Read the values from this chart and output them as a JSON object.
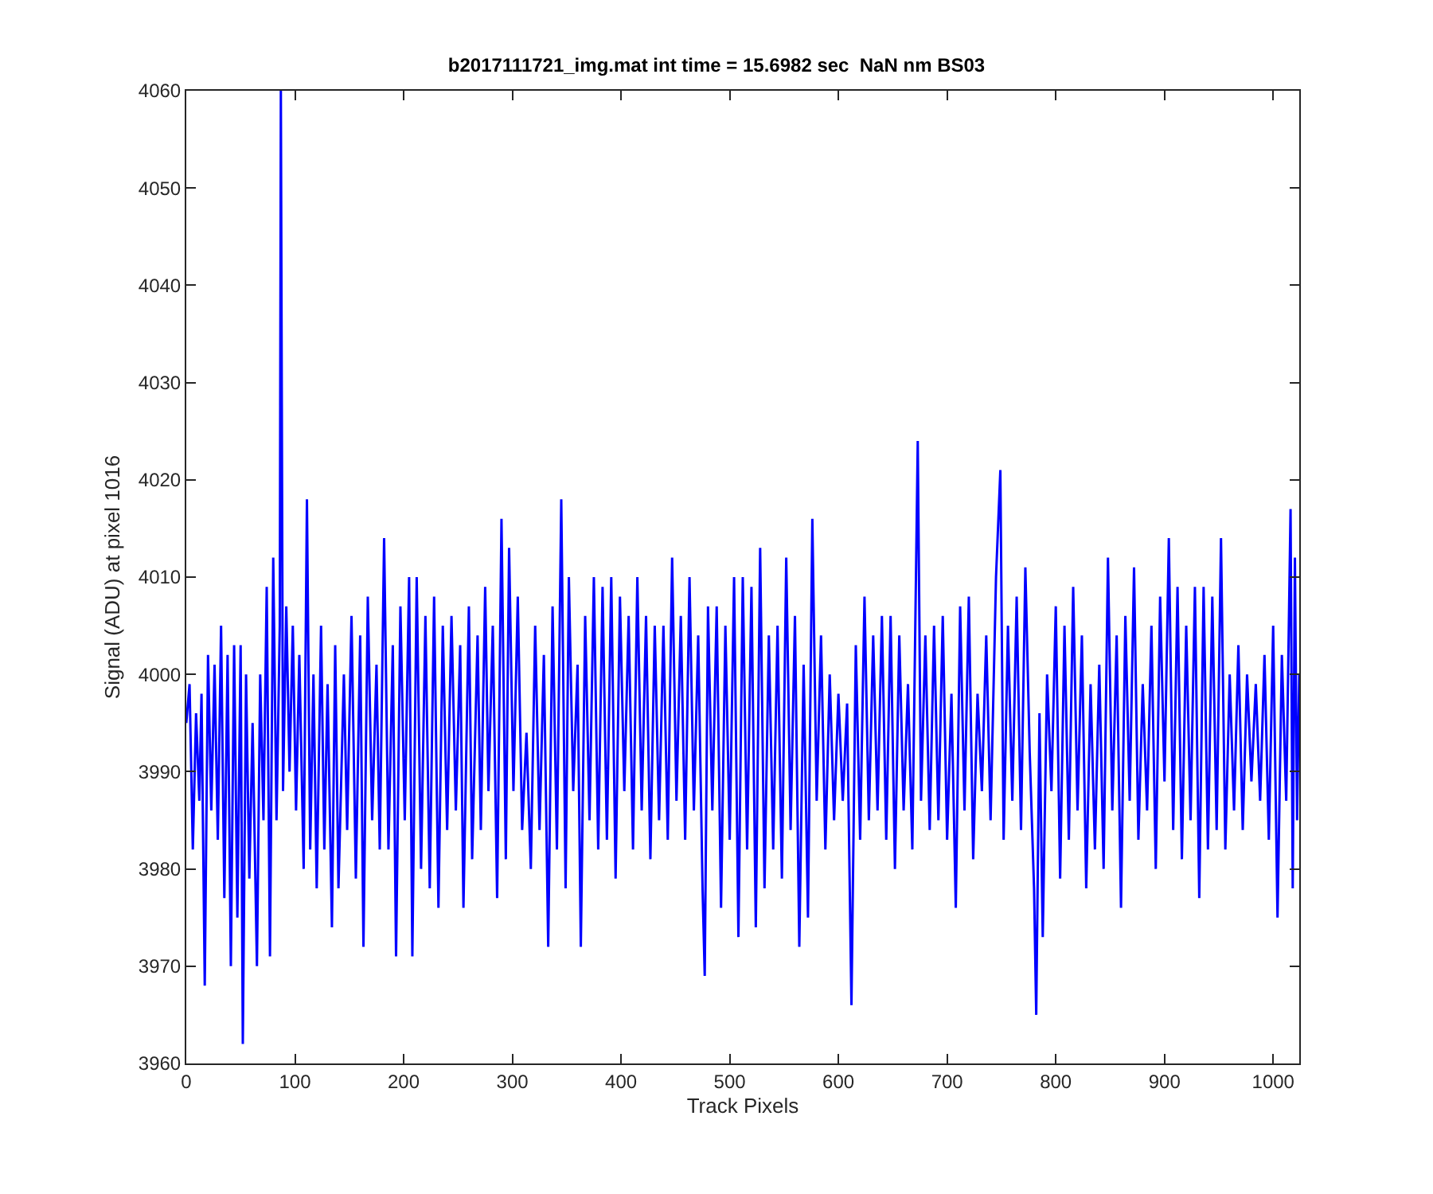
{
  "chart_data": {
    "type": "line",
    "title": "b2017111721_img.mat int time = 15.6982 sec  NaN nm BS03",
    "xlabel": "Track Pixels",
    "ylabel": "Signal (ADU) at pixel 1016",
    "xlim": [
      0,
      1024
    ],
    "xticks": [
      0,
      100,
      200,
      300,
      400,
      500,
      600,
      700,
      800,
      900,
      1000
    ],
    "ylim": [
      3960,
      4060
    ],
    "yticks": [
      3960,
      3970,
      3980,
      3990,
      4000,
      4010,
      4020,
      4030,
      4040,
      4050,
      4060
    ],
    "marker": "none",
    "line_style": "solid",
    "series": [
      {
        "color": "#0000ff",
        "x": [
          0,
          3,
          6,
          9,
          12,
          14,
          17,
          20,
          23,
          26,
          29,
          32,
          35,
          38,
          41,
          44,
          47,
          50,
          52,
          55,
          58,
          61,
          65,
          68,
          71,
          74,
          77,
          80,
          83,
          86,
          87,
          89,
          92,
          95,
          98,
          101,
          104,
          108,
          111,
          114,
          117,
          120,
          124,
          127,
          130,
          134,
          137,
          140,
          145,
          148,
          152,
          156,
          160,
          163,
          167,
          171,
          175,
          178,
          182,
          186,
          190,
          193,
          197,
          201,
          205,
          208,
          212,
          216,
          220,
          224,
          228,
          232,
          236,
          240,
          244,
          248,
          252,
          255,
          260,
          263,
          268,
          271,
          275,
          278,
          282,
          286,
          290,
          294,
          297,
          301,
          305,
          309,
          313,
          317,
          321,
          325,
          329,
          333,
          337,
          341,
          345,
          349,
          352,
          356,
          360,
          363,
          367,
          371,
          375,
          379,
          383,
          387,
          391,
          395,
          399,
          403,
          407,
          411,
          415,
          419,
          423,
          427,
          431,
          435,
          439,
          443,
          447,
          451,
          455,
          459,
          463,
          467,
          471,
          475,
          477,
          480,
          484,
          488,
          492,
          496,
          500,
          504,
          508,
          512,
          516,
          520,
          524,
          528,
          532,
          536,
          540,
          544,
          548,
          552,
          556,
          560,
          564,
          568,
          572,
          576,
          580,
          584,
          588,
          592,
          596,
          600,
          604,
          608,
          612,
          616,
          620,
          624,
          628,
          632,
          636,
          640,
          644,
          648,
          652,
          656,
          660,
          664,
          668,
          673,
          676,
          680,
          684,
          688,
          692,
          696,
          700,
          704,
          708,
          712,
          716,
          720,
          724,
          728,
          732,
          736,
          740,
          745,
          749,
          752,
          756,
          760,
          764,
          768,
          772,
          776,
          780,
          782,
          785,
          788,
          792,
          796,
          800,
          804,
          808,
          812,
          816,
          820,
          824,
          828,
          832,
          836,
          840,
          844,
          848,
          852,
          856,
          860,
          864,
          868,
          872,
          876,
          880,
          884,
          888,
          892,
          896,
          900,
          904,
          908,
          912,
          916,
          920,
          924,
          928,
          932,
          936,
          940,
          944,
          948,
          952,
          956,
          960,
          964,
          968,
          972,
          976,
          980,
          984,
          988,
          992,
          996,
          1000,
          1004,
          1008,
          1012,
          1016,
          1018,
          1020,
          1022,
          1024
        ],
        "values": [
          3995,
          3999,
          3982,
          3996,
          3987,
          3998,
          3968,
          4002,
          3986,
          4001,
          3983,
          4005,
          3977,
          4002,
          3970,
          4003,
          3975,
          4003,
          3962,
          4000,
          3979,
          3995,
          3970,
          4000,
          3985,
          4009,
          3971,
          4012,
          3985,
          4005,
          4060,
          3988,
          4007,
          3990,
          4005,
          3986,
          4002,
          3980,
          4018,
          3982,
          4000,
          3978,
          4005,
          3982,
          3999,
          3974,
          4003,
          3978,
          4000,
          3984,
          4006,
          3979,
          4004,
          3972,
          4008,
          3985,
          4001,
          3982,
          4014,
          3982,
          4003,
          3971,
          4007,
          3985,
          4010,
          3971,
          4010,
          3980,
          4006,
          3978,
          4008,
          3976,
          4005,
          3984,
          4006,
          3986,
          4003,
          3976,
          4007,
          3981,
          4004,
          3984,
          4009,
          3988,
          4005,
          3977,
          4016,
          3981,
          4013,
          3988,
          4008,
          3984,
          3994,
          3980,
          4005,
          3984,
          4002,
          3972,
          4007,
          3982,
          4018,
          3978,
          4010,
          3988,
          4001,
          3972,
          4006,
          3985,
          4010,
          3982,
          4009,
          3983,
          4010,
          3979,
          4008,
          3988,
          4006,
          3982,
          4010,
          3986,
          4006,
          3981,
          4005,
          3985,
          4005,
          3983,
          4012,
          3987,
          4006,
          3983,
          4010,
          3986,
          4004,
          3978,
          3969,
          4007,
          3986,
          4007,
          3976,
          4005,
          3983,
          4010,
          3973,
          4010,
          3982,
          4009,
          3974,
          4013,
          3978,
          4004,
          3982,
          4005,
          3979,
          4012,
          3984,
          4006,
          3972,
          4001,
          3975,
          4016,
          3987,
          4004,
          3982,
          4000,
          3985,
          3998,
          3987,
          3997,
          3966,
          4003,
          3983,
          4008,
          3985,
          4004,
          3986,
          4006,
          3983,
          4006,
          3980,
          4004,
          3986,
          3999,
          3982,
          4024,
          3987,
          4004,
          3984,
          4005,
          3985,
          4006,
          3983,
          3998,
          3976,
          4007,
          3986,
          4008,
          3981,
          3998,
          3988,
          4004,
          3985,
          4010,
          4021,
          3983,
          4005,
          3987,
          4008,
          3984,
          4011,
          3992,
          3978,
          3965,
          3996,
          3973,
          4000,
          3988,
          4007,
          3979,
          4005,
          3983,
          4009,
          3986,
          4004,
          3978,
          3999,
          3982,
          4001,
          3980,
          4012,
          3986,
          4004,
          3976,
          4006,
          3987,
          4011,
          3983,
          3999,
          3986,
          4005,
          3980,
          4008,
          3989,
          4014,
          3984,
          4009,
          3981,
          4005,
          3985,
          4009,
          3977,
          4009,
          3982,
          4008,
          3984,
          4014,
          3982,
          4000,
          3986,
          4003,
          3984,
          4000,
          3989,
          3999,
          3987,
          4002,
          3983,
          4005,
          3975,
          4002,
          3987,
          4017,
          3978,
          4012,
          3985,
          4000
        ]
      }
    ]
  }
}
